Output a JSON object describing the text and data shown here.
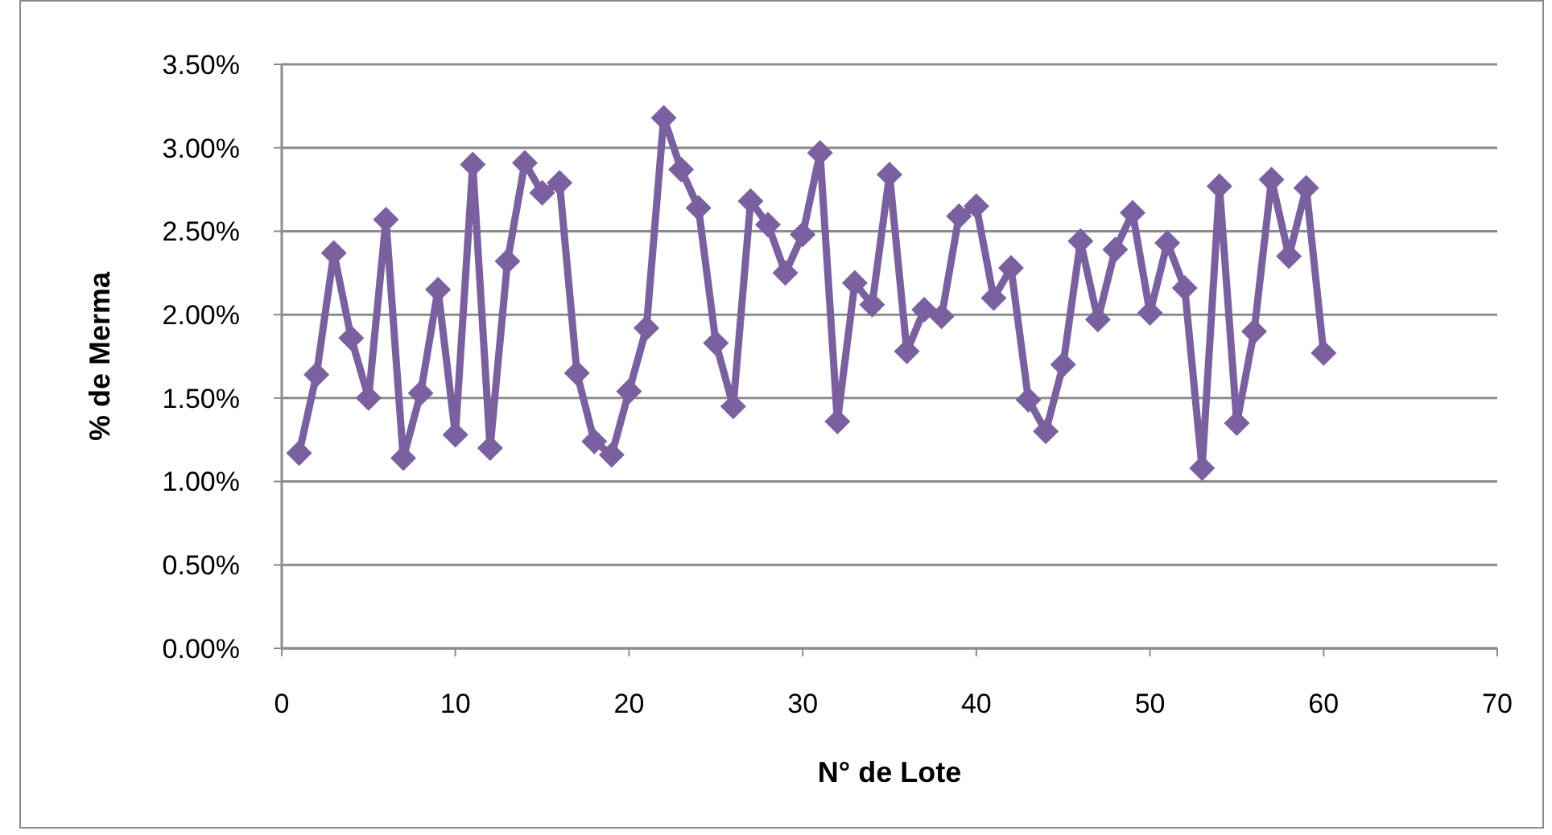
{
  "chart_data": {
    "type": "line",
    "xlabel": "N° de Lote",
    "ylabel": "% de Merma",
    "x": [
      1,
      2,
      3,
      4,
      5,
      6,
      7,
      8,
      9,
      10,
      11,
      12,
      13,
      14,
      15,
      16,
      17,
      18,
      19,
      20,
      21,
      22,
      23,
      24,
      25,
      26,
      27,
      28,
      29,
      30,
      31,
      32,
      33,
      34,
      35,
      36,
      37,
      38,
      39,
      40,
      41,
      42,
      43,
      44,
      45,
      46,
      47,
      48,
      49,
      50,
      51,
      52,
      53,
      54,
      55,
      56,
      57,
      58,
      59,
      60
    ],
    "series": [
      {
        "color": "#7b609f",
        "values": [
          1.17,
          1.64,
          2.37,
          1.86,
          1.5,
          2.57,
          1.14,
          1.53,
          2.15,
          1.28,
          2.9,
          1.2,
          2.32,
          2.91,
          2.73,
          2.79,
          1.65,
          1.24,
          1.16,
          1.54,
          1.92,
          3.18,
          2.87,
          2.64,
          1.83,
          1.45,
          2.68,
          2.54,
          2.25,
          2.48,
          2.97,
          1.36,
          2.19,
          2.06,
          2.84,
          1.78,
          2.03,
          1.99,
          2.59,
          2.65,
          2.1,
          2.28,
          1.49,
          1.3,
          1.7,
          2.44,
          1.97,
          2.39,
          2.61,
          2.01,
          2.43,
          2.16,
          1.08,
          2.77,
          1.35,
          1.9,
          2.81,
          2.35,
          2.76,
          1.77
        ]
      }
    ],
    "xlim": [
      0,
      70
    ],
    "xticks": [
      0,
      10,
      20,
      30,
      40,
      50,
      60,
      70
    ],
    "ylim": [
      0,
      3.5
    ],
    "yticks": [
      {
        "value": 0,
        "label": "0.00%"
      },
      {
        "value": 0.5,
        "label": "0.50%"
      },
      {
        "value": 1,
        "label": "1.00%"
      },
      {
        "value": 1.5,
        "label": "1.50%"
      },
      {
        "value": 2,
        "label": "2.00%"
      },
      {
        "value": 2.5,
        "label": "2.50%"
      },
      {
        "value": 3,
        "label": "3.00%"
      },
      {
        "value": 3.5,
        "label": "3.50%"
      }
    ],
    "grid": "y",
    "marker": "diamond",
    "line_style": "solid"
  }
}
